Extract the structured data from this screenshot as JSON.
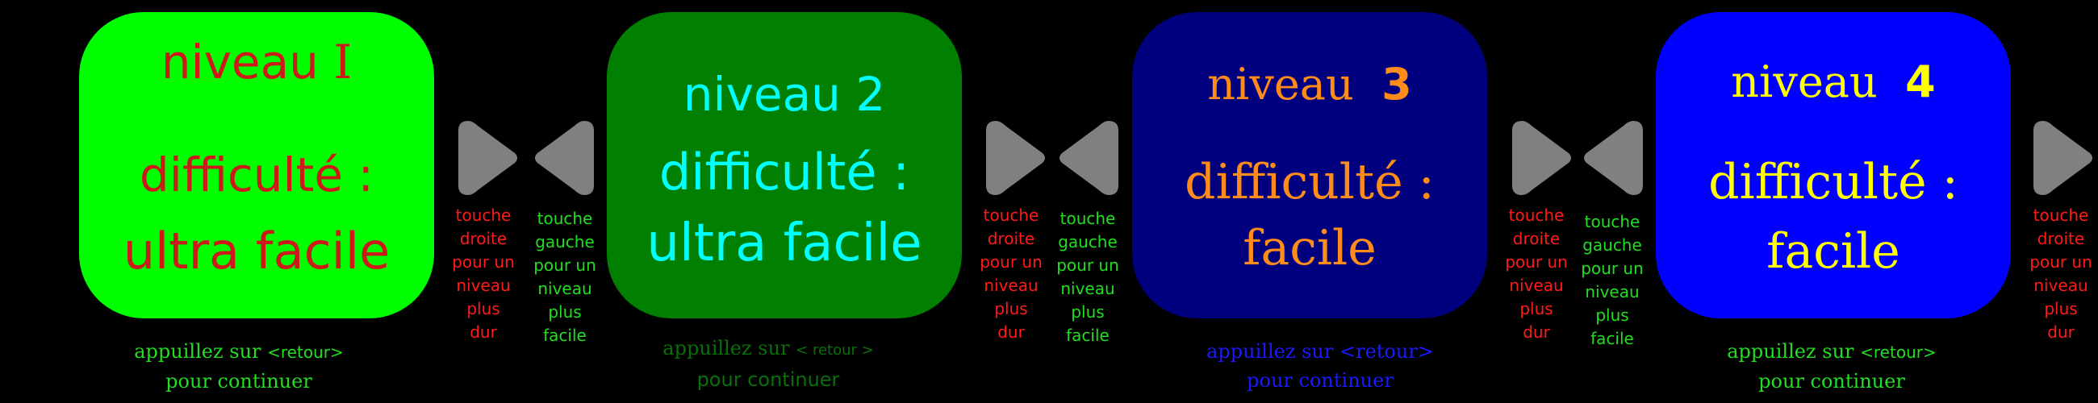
{
  "colors": {
    "background": "#000000",
    "arrow": "#808080",
    "note_right": "#ff1a1a",
    "note_left": "#22dd22"
  },
  "levels": [
    {
      "line1": "niveau",
      "num": "I",
      "line2": "difficulté :",
      "line3": "ultra facile",
      "bg": "#00ff00",
      "fg": "#cc1a1a",
      "font": "sans",
      "hint1": "appuillez sur",
      "hint_key": "<retour>",
      "hint2": "pour continuer",
      "hint_color": "#22dd22"
    },
    {
      "line1": "niveau",
      "num": "2",
      "line2": "difficulté :",
      "line3": "ultra facile",
      "bg": "#007f00",
      "fg": "#00ffff",
      "font": "sans",
      "hint1": "appuillez sur",
      "hint_key": "< retour >",
      "hint2": "pour continuer",
      "hint_color": "#0a6f0a"
    },
    {
      "line1": "niveau",
      "num": "3",
      "line2": "difficulté :",
      "line3": "facile",
      "bg": "#00007f",
      "fg": "#ff8c1a",
      "font": "serif",
      "hint1": "appuillez sur",
      "hint_key": "<retour>",
      "hint2": "pour continuer",
      "hint_color": "#1a1aff"
    },
    {
      "line1": "niveau",
      "num": "4",
      "line2": "difficulté :",
      "line3": "facile",
      "bg": "#0000ff",
      "fg": "#ffff00",
      "font": "serif",
      "hint1": "appuillez sur",
      "hint_key": "<retour>",
      "hint2": "pour continuer",
      "hint_color": "#22dd22"
    }
  ],
  "notes": {
    "right": [
      "touche",
      "droite",
      "pour un",
      "niveau",
      "plus",
      "dur"
    ],
    "left": [
      "touche",
      "gauche",
      "pour un",
      "niveau",
      "plus",
      "facile"
    ]
  }
}
